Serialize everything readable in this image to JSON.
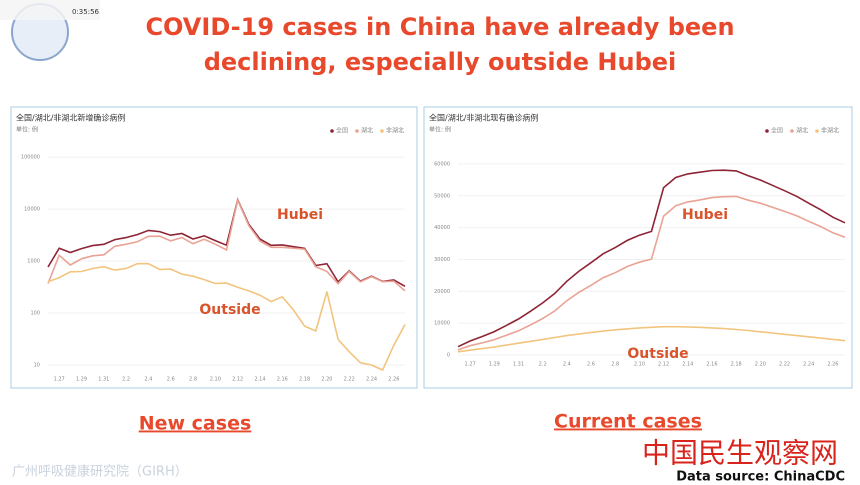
{
  "toolbar": {
    "time": "0:35:56"
  },
  "title_lines": [
    "COVID-19 cases in China have already been",
    "declining, especially outside Hubei"
  ],
  "captions": [
    "New cases",
    "Current cases"
  ],
  "watermark": "中国民生观察网",
  "footer_org": "广州呼吸健康研究院（GIRH）",
  "source": "Data source: ChinaCDC",
  "chart_data": [
    {
      "type": "line",
      "title": "全国/湖北/非湖北新增确诊病例",
      "y_label": "单位: 例",
      "log": true,
      "categories": [
        null,
        "1.27",
        null,
        "1.29",
        null,
        "1.31",
        null,
        "2.2",
        null,
        "2.4",
        null,
        "2.6",
        null,
        "2.8",
        null,
        "2.10",
        null,
        "2.12",
        null,
        "2.14",
        null,
        "2.16",
        null,
        "2.18",
        null,
        "2.20",
        null,
        "2.22",
        null,
        "2.24",
        null,
        "2.26",
        null
      ],
      "ylim": [
        8,
        150000
      ],
      "yticks": [
        10,
        100,
        1000,
        10000,
        100000
      ],
      "legend": "top-right",
      "annotations": [
        "Hubei",
        "Outside"
      ],
      "series": [
        {
          "name": "全国",
          "color": "#8e2435",
          "values": [
            770,
            1771,
            1459,
            1737,
            1982,
            2102,
            2590,
            2829,
            3235,
            3887,
            3694,
            3143,
            3399,
            2656,
            3062,
            2478,
            2015,
            15152,
            5090,
            2641,
            2009,
            2048,
            1886,
            1749,
            820,
            889,
            397,
            648,
            409,
            508,
            406,
            433,
            327
          ]
        },
        {
          "name": "湖北",
          "color": "#e9a394",
          "values": [
            370,
            1291,
            839,
            1107,
            1262,
            1322,
            1920,
            2109,
            2345,
            2997,
            3004,
            2443,
            2839,
            2146,
            2622,
            2108,
            1638,
            14840,
            4823,
            2421,
            1843,
            1843,
            1771,
            1693,
            775,
            631,
            366,
            630,
            398,
            499,
            401,
            409,
            267
          ]
        },
        {
          "name": "非湖北",
          "color": "#f2c47e",
          "values": [
            400,
            480,
            620,
            630,
            720,
            780,
            670,
            720,
            890,
            890,
            690,
            700,
            560,
            510,
            440,
            370,
            377,
            312,
            267,
            220,
            166,
            205,
            115,
            56,
            45,
            258,
            31,
            18,
            11,
            10,
            8,
            24,
            60
          ]
        }
      ]
    },
    {
      "type": "line",
      "title": "全国/湖北/非湖北现有确诊病例",
      "y_label": "单位: 例",
      "log": false,
      "categories": [
        null,
        "1.27",
        null,
        "1.29",
        null,
        "1.31",
        null,
        "2.2",
        null,
        "2.4",
        null,
        "2.6",
        null,
        "2.8",
        null,
        "2.10",
        null,
        "2.12",
        null,
        "2.14",
        null,
        "2.16",
        null,
        "2.18",
        null,
        "2.20",
        null,
        "2.22",
        null,
        "2.24",
        null,
        "2.26",
        null
      ],
      "ylim": [
        0,
        65000
      ],
      "yticks": [
        0,
        10000,
        20000,
        30000,
        40000,
        50000,
        60000
      ],
      "legend": "top-right",
      "annotations": [
        "Hubei",
        "Outside"
      ],
      "series": [
        {
          "name": "全国",
          "color": "#8e2435",
          "values": [
            2616,
            4409,
            5806,
            7333,
            9308,
            11289,
            13748,
            16369,
            19350,
            23144,
            26302,
            28985,
            31774,
            33738,
            35982,
            37626,
            38800,
            52526,
            55748,
            56873,
            57416,
            57934,
            58016,
            57805,
            56303,
            54965,
            53284,
            51606,
            49824,
            47672,
            45604,
            43258,
            41500
          ]
        },
        {
          "name": "湖北",
          "color": "#e9a394",
          "values": [
            1616,
            2909,
            3806,
            4833,
            6208,
            7589,
            9448,
            11469,
            13850,
            17044,
            19702,
            21885,
            24274,
            25838,
            27782,
            29126,
            30100,
            43626,
            46848,
            48073,
            48716,
            49434,
            49716,
            49805,
            48603,
            47665,
            46384,
            45106,
            43724,
            41972,
            40304,
            38358,
            37000
          ]
        },
        {
          "name": "非湖北",
          "color": "#f2c47e",
          "values": [
            1000,
            1500,
            2000,
            2500,
            3100,
            3700,
            4300,
            4900,
            5500,
            6100,
            6600,
            7100,
            7500,
            7900,
            8200,
            8500,
            8700,
            8900,
            8900,
            8800,
            8700,
            8500,
            8300,
            8000,
            7700,
            7300,
            6900,
            6500,
            6100,
            5700,
            5300,
            4900,
            4500
          ]
        }
      ]
    }
  ]
}
